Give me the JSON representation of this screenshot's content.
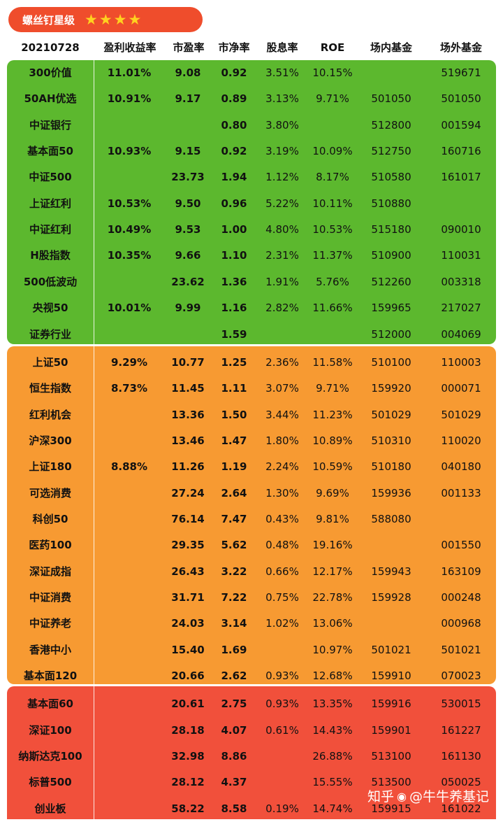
{
  "badge": {
    "label": "螺丝钉星级",
    "star_count": 4
  },
  "header": [
    "20210728",
    "盈利收益率",
    "市盈率",
    "市净率",
    "股息率",
    "ROE",
    "场内基金",
    "场外基金"
  ],
  "rows": [
    {
      "name": "300价值",
      "ey": "11.01%",
      "pe": "9.08",
      "pb": "0.92",
      "dy": "3.51%",
      "roe": "10.15%",
      "onx": "",
      "otc": "519671",
      "tier": "green"
    },
    {
      "name": "50AH优选",
      "ey": "10.91%",
      "pe": "9.17",
      "pb": "0.89",
      "dy": "3.13%",
      "roe": "9.71%",
      "onx": "501050",
      "otc": "501050",
      "tier": "green"
    },
    {
      "name": "中证银行",
      "ey": "",
      "pe": "",
      "pb": "0.80",
      "dy": "3.80%",
      "roe": "",
      "onx": "512800",
      "otc": "001594",
      "tier": "green"
    },
    {
      "name": "基本面50",
      "ey": "10.93%",
      "pe": "9.15",
      "pb": "0.92",
      "dy": "3.19%",
      "roe": "10.09%",
      "onx": "512750",
      "otc": "160716",
      "tier": "green"
    },
    {
      "name": "中证500",
      "ey": "",
      "pe": "23.73",
      "pb": "1.94",
      "dy": "1.12%",
      "roe": "8.17%",
      "onx": "510580",
      "otc": "161017",
      "tier": "green"
    },
    {
      "name": "上证红利",
      "ey": "10.53%",
      "pe": "9.50",
      "pb": "0.96",
      "dy": "5.22%",
      "roe": "10.11%",
      "onx": "510880",
      "otc": "",
      "tier": "green"
    },
    {
      "name": "中证红利",
      "ey": "10.49%",
      "pe": "9.53",
      "pb": "1.00",
      "dy": "4.80%",
      "roe": "10.53%",
      "onx": "515180",
      "otc": "090010",
      "tier": "green"
    },
    {
      "name": "H股指数",
      "ey": "10.35%",
      "pe": "9.66",
      "pb": "1.10",
      "dy": "2.31%",
      "roe": "11.37%",
      "onx": "510900",
      "otc": "110031",
      "tier": "green"
    },
    {
      "name": "500低波动",
      "ey": "",
      "pe": "23.62",
      "pb": "1.36",
      "dy": "1.91%",
      "roe": "5.76%",
      "onx": "512260",
      "otc": "003318",
      "tier": "green"
    },
    {
      "name": "央视50",
      "ey": "10.01%",
      "pe": "9.99",
      "pb": "1.16",
      "dy": "2.82%",
      "roe": "11.66%",
      "onx": "159965",
      "otc": "217027",
      "tier": "green"
    },
    {
      "name": "证券行业",
      "ey": "",
      "pe": "",
      "pb": "1.59",
      "dy": "",
      "roe": "",
      "onx": "512000",
      "otc": "004069",
      "tier": "green"
    },
    {
      "name": "上证50",
      "ey": "9.29%",
      "pe": "10.77",
      "pb": "1.25",
      "dy": "2.36%",
      "roe": "11.58%",
      "onx": "510100",
      "otc": "110003",
      "tier": "orange"
    },
    {
      "name": "恒生指数",
      "ey": "8.73%",
      "pe": "11.45",
      "pb": "1.11",
      "dy": "3.07%",
      "roe": "9.71%",
      "onx": "159920",
      "otc": "000071",
      "tier": "orange"
    },
    {
      "name": "红利机会",
      "ey": "",
      "pe": "13.36",
      "pb": "1.50",
      "dy": "3.44%",
      "roe": "11.23%",
      "onx": "501029",
      "otc": "501029",
      "tier": "orange"
    },
    {
      "name": "沪深300",
      "ey": "",
      "pe": "13.46",
      "pb": "1.47",
      "dy": "1.80%",
      "roe": "10.89%",
      "onx": "510310",
      "otc": "110020",
      "tier": "orange"
    },
    {
      "name": "上证180",
      "ey": "8.88%",
      "pe": "11.26",
      "pb": "1.19",
      "dy": "2.24%",
      "roe": "10.59%",
      "onx": "510180",
      "otc": "040180",
      "tier": "orange"
    },
    {
      "name": "可选消费",
      "ey": "",
      "pe": "27.24",
      "pb": "2.64",
      "dy": "1.30%",
      "roe": "9.69%",
      "onx": "159936",
      "otc": "001133",
      "tier": "orange"
    },
    {
      "name": "科创50",
      "ey": "",
      "pe": "76.14",
      "pb": "7.47",
      "dy": "0.43%",
      "roe": "9.81%",
      "onx": "588080",
      "otc": "",
      "tier": "orange"
    },
    {
      "name": "医药100",
      "ey": "",
      "pe": "29.35",
      "pb": "5.62",
      "dy": "0.48%",
      "roe": "19.16%",
      "onx": "",
      "otc": "001550",
      "tier": "orange"
    },
    {
      "name": "深证成指",
      "ey": "",
      "pe": "26.43",
      "pb": "3.22",
      "dy": "0.66%",
      "roe": "12.17%",
      "onx": "159943",
      "otc": "163109",
      "tier": "orange"
    },
    {
      "name": "中证消费",
      "ey": "",
      "pe": "31.71",
      "pb": "7.22",
      "dy": "0.75%",
      "roe": "22.78%",
      "onx": "159928",
      "otc": "000248",
      "tier": "orange"
    },
    {
      "name": "中证养老",
      "ey": "",
      "pe": "24.03",
      "pb": "3.14",
      "dy": "1.02%",
      "roe": "13.06%",
      "onx": "",
      "otc": "000968",
      "tier": "orange"
    },
    {
      "name": "香港中小",
      "ey": "",
      "pe": "15.40",
      "pb": "1.69",
      "dy": "",
      "roe": "10.97%",
      "onx": "501021",
      "otc": "501021",
      "tier": "orange"
    },
    {
      "name": "基本面120",
      "ey": "",
      "pe": "20.66",
      "pb": "2.62",
      "dy": "0.93%",
      "roe": "12.68%",
      "onx": "159910",
      "otc": "070023",
      "tier": "orange"
    },
    {
      "name": "基本面60",
      "ey": "",
      "pe": "20.61",
      "pb": "2.75",
      "dy": "0.93%",
      "roe": "13.35%",
      "onx": "159916",
      "otc": "530015",
      "tier": "red"
    },
    {
      "name": "深证100",
      "ey": "",
      "pe": "28.18",
      "pb": "4.07",
      "dy": "0.61%",
      "roe": "14.43%",
      "onx": "159901",
      "otc": "161227",
      "tier": "red"
    },
    {
      "name": "纳斯达克100",
      "ey": "",
      "pe": "32.98",
      "pb": "8.86",
      "dy": "",
      "roe": "26.88%",
      "onx": "513100",
      "otc": "161130",
      "tier": "red"
    },
    {
      "name": "标普500",
      "ey": "",
      "pe": "28.12",
      "pb": "4.37",
      "dy": "",
      "roe": "15.55%",
      "onx": "513500",
      "otc": "050025",
      "tier": "red"
    },
    {
      "name": "创业板",
      "ey": "",
      "pe": "58.22",
      "pb": "8.58",
      "dy": "0.19%",
      "roe": "14.74%",
      "onx": "159915",
      "otc": "161022",
      "tier": "red"
    }
  ],
  "watermark": {
    "platform": "知乎",
    "author": "@牛牛养基记"
  }
}
